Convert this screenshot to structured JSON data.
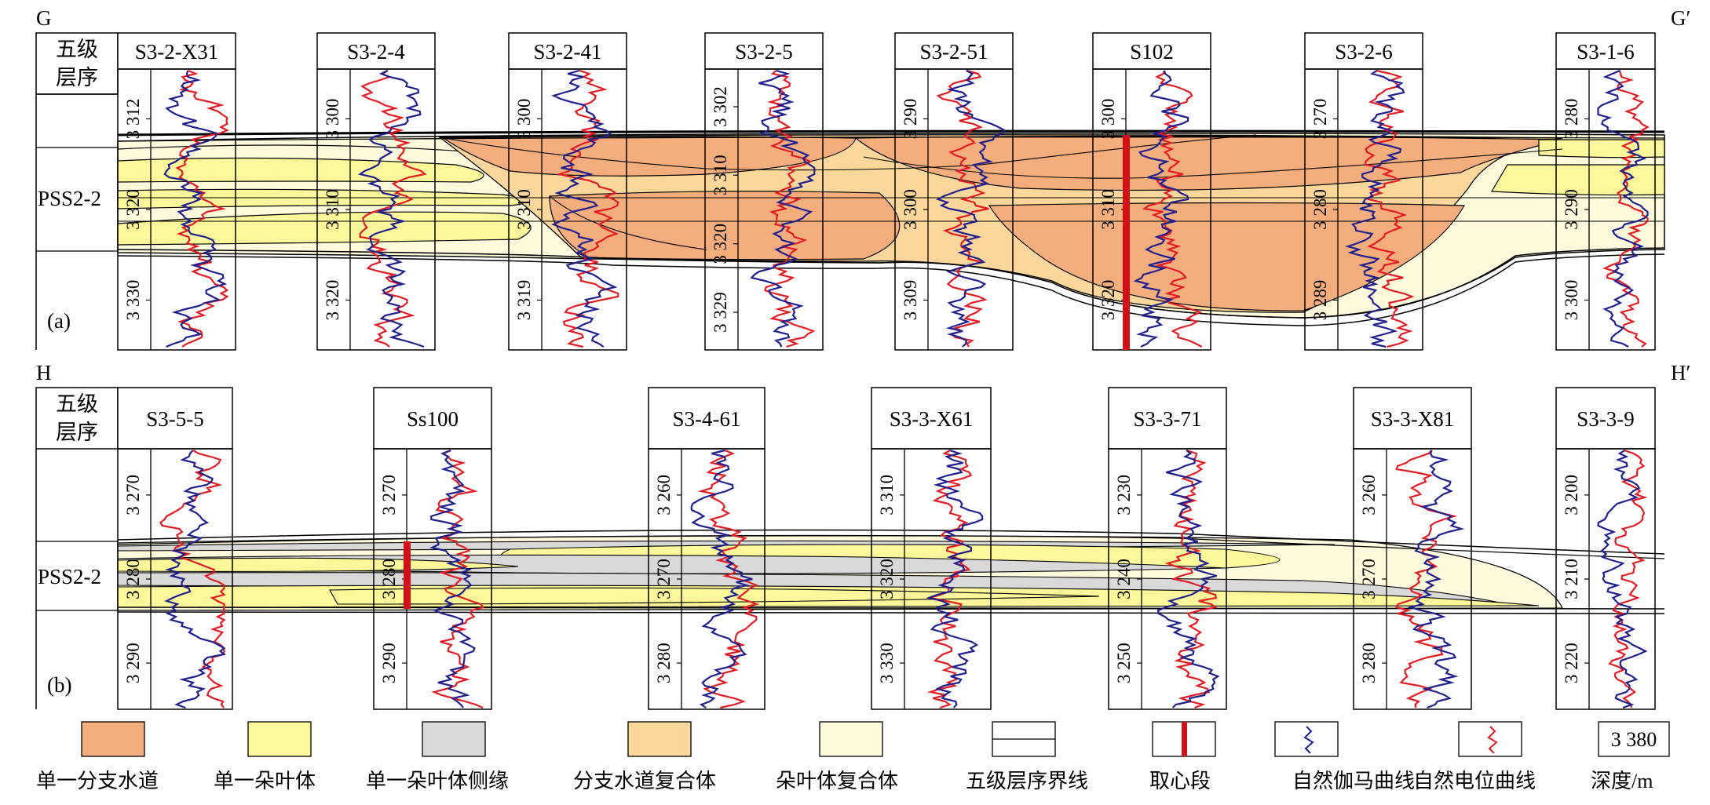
{
  "colors": {
    "channel": "#f4ae7e",
    "lobe": "#fbf79a",
    "lobe_margin": "#d9d9d9",
    "channel_complex": "#fcd79c",
    "lobe_complex": "#fdfbdc",
    "gamma": "#1f1f8f",
    "sp": "#e41b23",
    "core": "#d10f17"
  },
  "panel_a": {
    "left_letter": "G",
    "right_letter": "G′",
    "panel_label": "(a)",
    "sequence_label": "PSS2-2",
    "header_label": [
      "五级",
      "层序"
    ],
    "wells": [
      {
        "name": "S3-2-X31",
        "depths": [
          "3 312",
          "3 320",
          "3 330"
        ]
      },
      {
        "name": "S3-2-4",
        "depths": [
          "3 300",
          "3 310",
          "3 320"
        ]
      },
      {
        "name": "S3-2-41",
        "depths": [
          "3 300",
          "3 310",
          "3 319"
        ]
      },
      {
        "name": "S3-2-5",
        "depths": [
          "3 302",
          "3 310",
          "3 320",
          "3 329"
        ]
      },
      {
        "name": "S3-2-51",
        "depths": [
          "3 290",
          "3 300",
          "3 309"
        ]
      },
      {
        "name": "S102",
        "depths": [
          "3 300",
          "3 310",
          "3 320"
        ]
      },
      {
        "name": "S3-2-6",
        "depths": [
          "3 270",
          "3 280",
          "3 289"
        ]
      },
      {
        "name": "S3-1-6",
        "depths": [
          "3 280",
          "3 290",
          "3 300"
        ]
      }
    ]
  },
  "panel_b": {
    "left_letter": "H",
    "right_letter": "H′",
    "panel_label": "(b)",
    "sequence_label": "PSS2-2",
    "header_label": [
      "五级",
      "层序"
    ],
    "wells": [
      {
        "name": "S3-5-5",
        "depths": [
          "3 270",
          "3 280",
          "3 290"
        ]
      },
      {
        "name": "Ss100",
        "depths": [
          "3 270",
          "3 280",
          "3 290"
        ]
      },
      {
        "name": "S3-4-61",
        "depths": [
          "3 260",
          "3 270",
          "3 280"
        ]
      },
      {
        "name": "S3-3-X61",
        "depths": [
          "3 310",
          "3 320",
          "3 330"
        ]
      },
      {
        "name": "S3-3-71",
        "depths": [
          "3 230",
          "3 240",
          "3 250"
        ]
      },
      {
        "name": "S3-3-X81",
        "depths": [
          "3 260",
          "3 270",
          "3 280"
        ]
      },
      {
        "name": "S3-3-9",
        "depths": [
          "3 200",
          "3 210",
          "3 220"
        ]
      }
    ]
  },
  "legend": [
    {
      "label": "单一分支水道",
      "type": "channel"
    },
    {
      "label": "单一朵叶体",
      "type": "lobe"
    },
    {
      "label": "单一朵叶体侧缘",
      "type": "lobe_margin"
    },
    {
      "label": "分支水道复合体",
      "type": "channel_complex"
    },
    {
      "label": "朵叶体复合体",
      "type": "lobe_complex"
    },
    {
      "label": "五级层序界线",
      "type": "boundary"
    },
    {
      "label": "取心段",
      "type": "core"
    },
    {
      "label": "自然伽马曲线",
      "type": "gamma"
    },
    {
      "label": "自然电位曲线",
      "type": "sp"
    },
    {
      "label": "深度/m",
      "type": "depth",
      "sample": "3 380"
    }
  ]
}
